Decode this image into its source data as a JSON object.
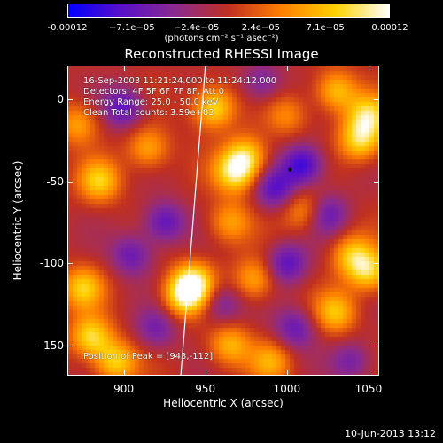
{
  "chart_data": {
    "type": "heatmap",
    "title": "Reconstructed RHESSI Image",
    "xlabel": "Heliocentric X (arcsec)",
    "ylabel": "Heliocentric Y (arcsec)",
    "xlim": [
      866,
      1056
    ],
    "ylim": [
      -168,
      20
    ],
    "xticks": [
      900,
      950,
      1000,
      1050
    ],
    "yticks": [
      0,
      -50,
      -100,
      -150
    ],
    "colorbar": {
      "tick_labels": [
        "-0.00012",
        "−7.1e−05",
        "−2.4e−05",
        "2.4e−05",
        "7.1e−05",
        "0.00012"
      ],
      "units": "(photons cm⁻² s⁻¹ asec⁻²)",
      "colors": [
        "#0000ff",
        "#5a10c8",
        "#8a2a90",
        "#c03020",
        "#ff8000",
        "#ffd000",
        "#ffffff"
      ]
    },
    "annotations": {
      "line1": "16-Sep-2003 11:21:24.000 to 11:24:12.000",
      "line2": "Detectors: 4F 5F 6F 7F 8F, Att 0",
      "line3": "Energy Range: 25.0 - 50.0 keV",
      "line4": "Clean     Total counts: 3.59e+03",
      "peak": "Position of Peak = [943,-112]"
    },
    "peak": [
      943,
      -112
    ],
    "blobs": [
      {
        "x": 943,
        "y": -112,
        "v": 1.0
      },
      {
        "x": 937,
        "y": -120,
        "v": 0.9
      },
      {
        "x": 955,
        "y": -5,
        "v": 0.95
      },
      {
        "x": 968,
        "y": -45,
        "v": 0.92
      },
      {
        "x": 975,
        "y": -35,
        "v": 0.85
      },
      {
        "x": 885,
        "y": -50,
        "v": 0.8
      },
      {
        "x": 872,
        "y": -15,
        "v": 0.6
      },
      {
        "x": 915,
        "y": -30,
        "v": 0.65
      },
      {
        "x": 1045,
        "y": -25,
        "v": 0.9
      },
      {
        "x": 1050,
        "y": -10,
        "v": 0.85
      },
      {
        "x": 1030,
        "y": 5,
        "v": 0.75
      },
      {
        "x": 1010,
        "y": -68,
        "v": 0.55
      },
      {
        "x": 1040,
        "y": -95,
        "v": 0.7
      },
      {
        "x": 1050,
        "y": -105,
        "v": 0.85
      },
      {
        "x": 1030,
        "y": -130,
        "v": 0.75
      },
      {
        "x": 980,
        "y": -110,
        "v": 0.65
      },
      {
        "x": 965,
        "y": -75,
        "v": 0.6
      },
      {
        "x": 875,
        "y": -115,
        "v": 0.8
      },
      {
        "x": 880,
        "y": -145,
        "v": 0.9
      },
      {
        "x": 895,
        "y": -160,
        "v": 0.85
      },
      {
        "x": 965,
        "y": -150,
        "v": 0.7
      },
      {
        "x": 990,
        "y": -160,
        "v": 0.6
      },
      {
        "x": 1000,
        "y": -10,
        "v": 0.45
      },
      {
        "x": 1010,
        "y": -40,
        "v": -0.9
      },
      {
        "x": 993,
        "y": -55,
        "v": -0.7
      },
      {
        "x": 900,
        "y": -5,
        "v": -0.7
      },
      {
        "x": 925,
        "y": -75,
        "v": -0.7
      },
      {
        "x": 905,
        "y": -95,
        "v": -0.6
      },
      {
        "x": 1000,
        "y": -100,
        "v": -0.7
      },
      {
        "x": 1025,
        "y": -70,
        "v": -0.6
      },
      {
        "x": 960,
        "y": -125,
        "v": -0.5
      },
      {
        "x": 1005,
        "y": -140,
        "v": -0.6
      },
      {
        "x": 920,
        "y": -140,
        "v": -0.5
      },
      {
        "x": 1040,
        "y": -160,
        "v": -0.5
      },
      {
        "x": 985,
        "y": 10,
        "v": -0.5
      }
    ],
    "limb_line": [
      [
        935,
        -168
      ],
      [
        950,
        20
      ]
    ]
  },
  "footer": "10-Jun-2013 13:12"
}
